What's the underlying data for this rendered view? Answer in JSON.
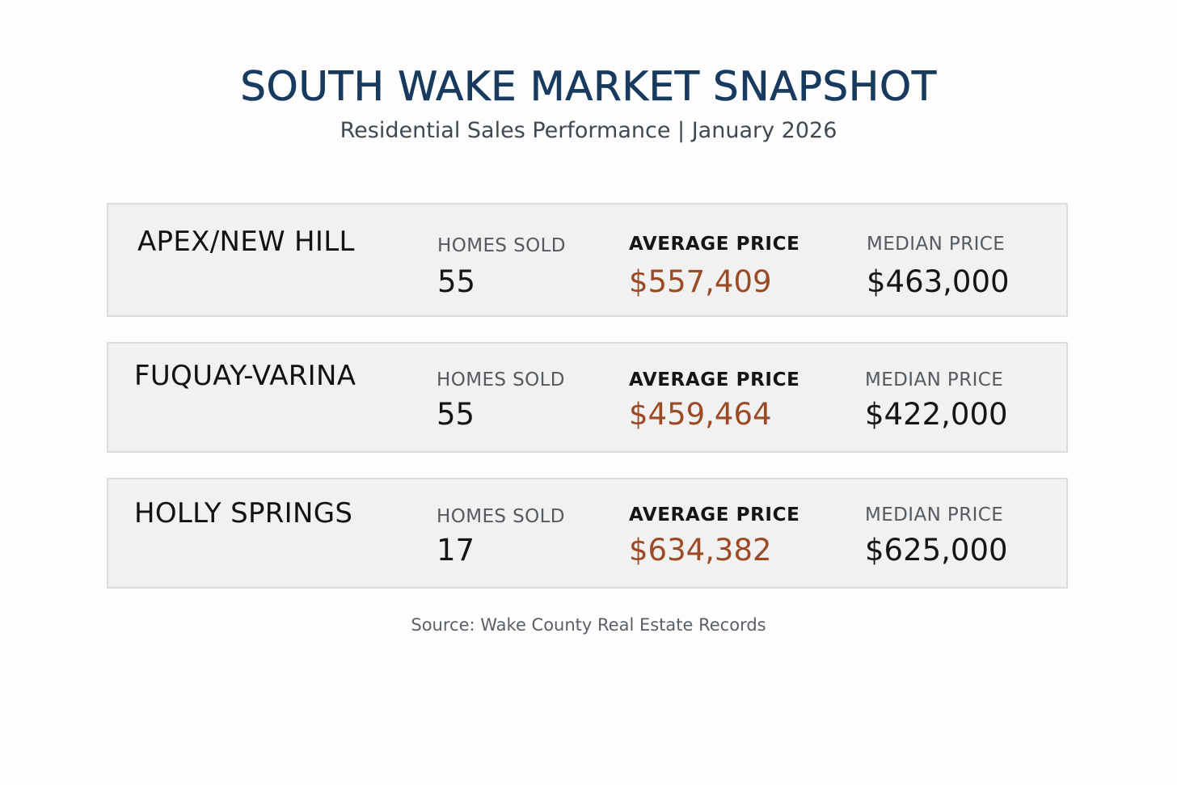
{
  "header": {
    "title": "SOUTH WAKE MARKET SNAPSHOT",
    "subtitle": "Residential Sales Performance | January 2026"
  },
  "labels": {
    "homes_sold": "HOMES SOLD",
    "average_price": "AVERAGE PRICE",
    "median_price": "MEDIAN PRICE"
  },
  "markets": [
    {
      "name": "APEX/NEW HILL",
      "homes_sold": "55",
      "average_price": "$557,409",
      "median_price": "$463,000"
    },
    {
      "name": "FUQUAY-VARINA",
      "homes_sold": "55",
      "average_price": "$459,464",
      "median_price": "$422,000"
    },
    {
      "name": "HOLLY SPRINGS",
      "homes_sold": "17",
      "average_price": "$634,382",
      "median_price": "$625,000"
    }
  ],
  "footer": {
    "source": "Source: Wake County Real Estate Records"
  },
  "colors": {
    "title": "#173a5e",
    "average_price_value": "#9a4a24",
    "card_background": "#f1f1f1"
  }
}
